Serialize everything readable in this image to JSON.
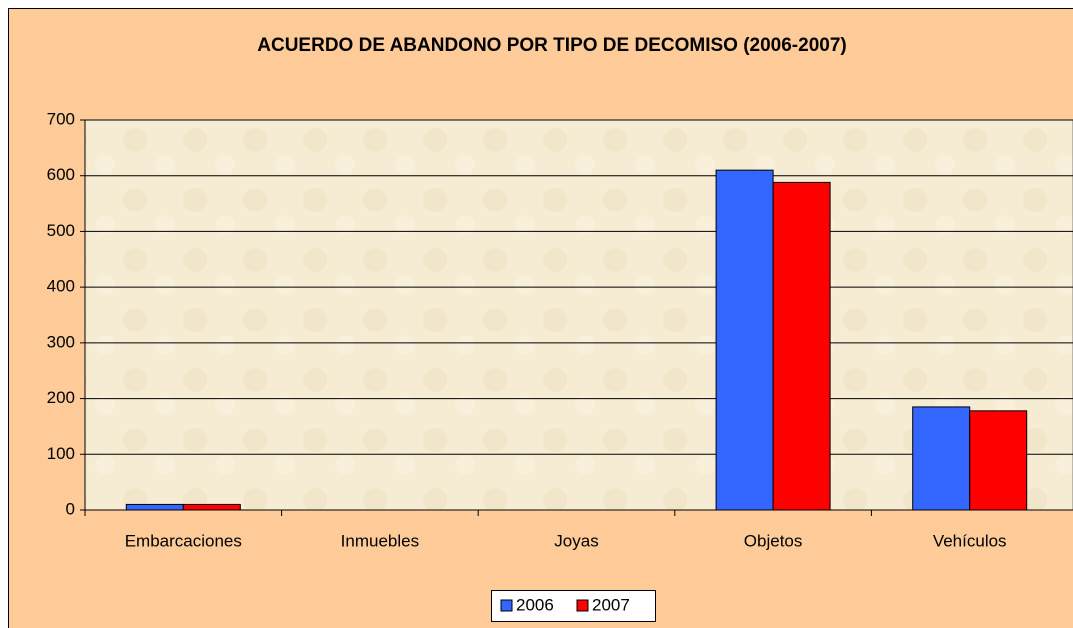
{
  "chart_data": {
    "type": "bar",
    "title": "ACUERDO DE ABANDONO POR TIPO DE DECOMISO (2006-2007)",
    "categories": [
      "Embarcaciones",
      "Inmuebles",
      "Joyas",
      "Objetos",
      "Vehículos"
    ],
    "series": [
      {
        "name": "2006",
        "color": "#3366ff",
        "values": [
          10,
          0,
          0,
          610,
          185
        ]
      },
      {
        "name": "2007",
        "color": "#ff0000",
        "values": [
          10,
          0,
          0,
          588,
          178
        ]
      }
    ],
    "ylim": [
      0,
      700
    ],
    "yticks": [
      0,
      100,
      200,
      300,
      400,
      500,
      600,
      700
    ],
    "grid": true,
    "legend": "bottom"
  }
}
